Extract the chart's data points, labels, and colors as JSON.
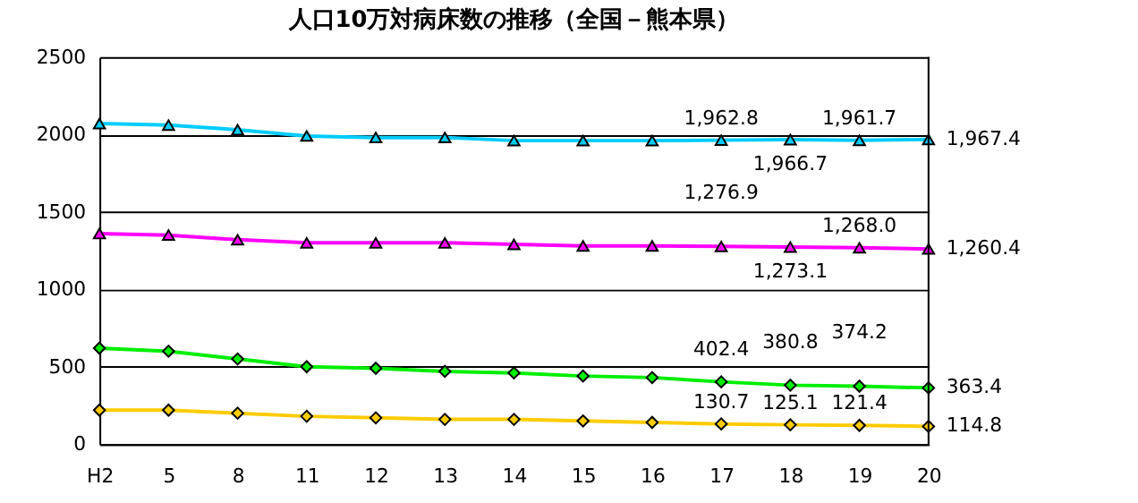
{
  "chart_data": {
    "type": "line",
    "title": "人口10万対病床数の推移（全国－熊本県）",
    "categories": [
      "H2",
      "5",
      "8",
      "11",
      "12",
      "13",
      "14",
      "15",
      "16",
      "17",
      "18",
      "19",
      "20"
    ],
    "ylim": [
      0,
      2500
    ],
    "yticks": [
      0,
      500,
      1000,
      1500,
      2000,
      2500
    ],
    "grid": "y",
    "line_style": "solid",
    "series": [
      {
        "color": "#00ccff",
        "marker": "triangle",
        "values": [
          2070,
          2060,
          2030,
          1990,
          1980,
          1980,
          1960,
          1960,
          1960,
          1962.8,
          1966.7,
          1961.7,
          1967.4
        ],
        "value_labels": [
          null,
          null,
          null,
          null,
          null,
          null,
          null,
          null,
          null,
          "1,962.8",
          "1,966.7",
          "1,961.7",
          "1,967.4"
        ]
      },
      {
        "color": "#ff00ff",
        "marker": "triangle",
        "values": [
          1360,
          1350,
          1320,
          1300,
          1300,
          1300,
          1290,
          1280,
          1280,
          1276.9,
          1273.1,
          1268.0,
          1260.4
        ],
        "value_labels": [
          null,
          null,
          null,
          null,
          null,
          null,
          null,
          null,
          null,
          "1,276.9",
          "1,273.1",
          "1,268.0",
          "1,260.4"
        ]
      },
      {
        "color": "#00ee00",
        "marker": "diamond",
        "values": [
          620,
          600,
          550,
          500,
          490,
          470,
          460,
          440,
          430,
          402.4,
          380.8,
          374.2,
          363.4
        ],
        "value_labels": [
          null,
          null,
          null,
          null,
          null,
          null,
          null,
          null,
          null,
          "402.4",
          "380.8",
          "374.2",
          "363.4"
        ]
      },
      {
        "color": "#ffcc00",
        "marker": "diamond",
        "values": [
          220,
          220,
          200,
          180,
          170,
          160,
          160,
          150,
          140,
          130.7,
          125.1,
          121.4,
          114.8
        ],
        "value_labels": [
          null,
          null,
          null,
          null,
          null,
          null,
          null,
          null,
          null,
          "130.7",
          "125.1",
          "121.4",
          "114.8"
        ]
      }
    ]
  }
}
